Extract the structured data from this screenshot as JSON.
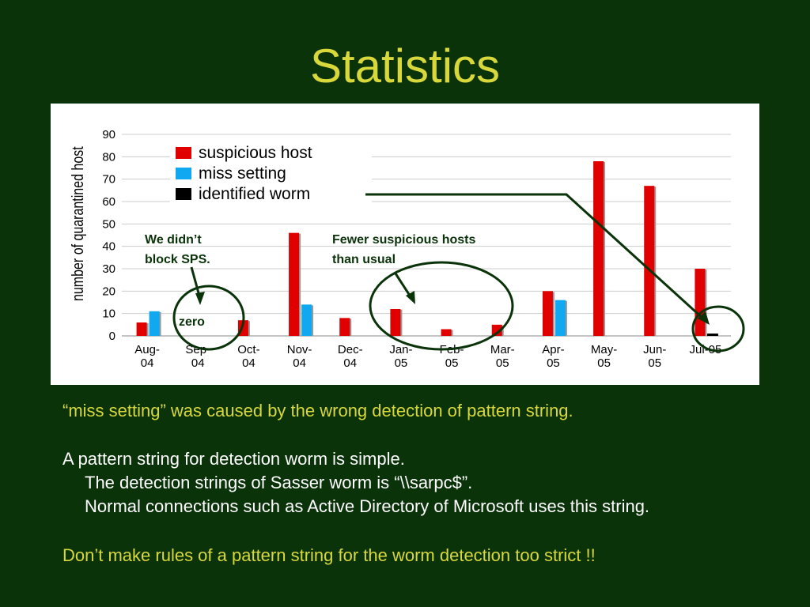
{
  "slide": {
    "title": "Statistics",
    "note1": "“miss setting” was caused by the wrong detection of pattern string.",
    "line1": "A pattern string for detection worm is simple.",
    "line2": "The detection strings of Sasser worm is “\\\\sarpc$”.",
    "line3": "Normal connections such as Active Directory of Microsoft uses this string.",
    "note2": "Don’t make rules of a pattern string for the worm detection too strict !!"
  },
  "chart_data": {
    "type": "bar",
    "ylabel": "number of quarantined host",
    "ylim": [
      0,
      90
    ],
    "yticks": [
      0,
      10,
      20,
      30,
      40,
      50,
      60,
      70,
      80,
      90
    ],
    "grid": true,
    "legend_position": "top-left",
    "categories": [
      [
        "Aug-",
        "04"
      ],
      [
        "Sep-",
        "04"
      ],
      [
        "Oct-",
        "04"
      ],
      [
        "Nov-",
        "04"
      ],
      [
        "Dec-",
        "04"
      ],
      [
        "Jan-",
        "05"
      ],
      [
        "Feb-",
        "05"
      ],
      [
        "Mar-",
        "05"
      ],
      [
        "Apr-",
        "05"
      ],
      [
        "May-",
        "05"
      ],
      [
        "Jun-",
        "05"
      ],
      [
        "Jul-05",
        ""
      ]
    ],
    "series": [
      {
        "name": "suspicious  host",
        "color": "#e00000",
        "values": [
          6,
          0,
          7,
          46,
          8,
          12,
          3,
          5,
          20,
          78,
          67,
          30
        ]
      },
      {
        "name": "miss setting",
        "color": "#10a8f0",
        "values": [
          11,
          0,
          0,
          14,
          0,
          0,
          0,
          0,
          16,
          0,
          0,
          0
        ]
      },
      {
        "name": "identified worm",
        "color": "#000000",
        "values": [
          0,
          0,
          0,
          0,
          0,
          0,
          0,
          0,
          0,
          0,
          0,
          1
        ]
      }
    ],
    "annotations": {
      "sps_line1": "We didn’t",
      "sps_line2": "block SPS.",
      "zero": "zero",
      "fewer_line1": "Fewer suspicious hosts",
      "fewer_line2": "than usual"
    },
    "colors": {
      "annotation": "#0a330a",
      "gridline": "#cccccc"
    }
  }
}
